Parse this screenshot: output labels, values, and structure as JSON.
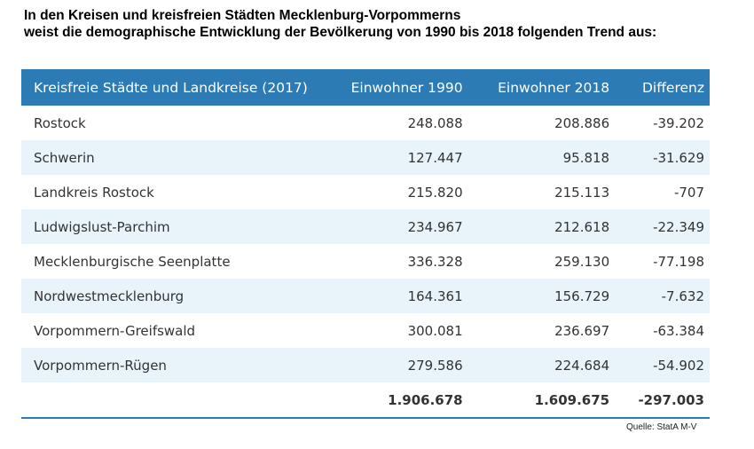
{
  "heading": {
    "line1": "In den Kreisen und kreisfreien Städten Mecklenburg-Vorpommerns",
    "line2": "weist die demographische Entwicklung der Bevölkerung von 1990 bis 2018 folgenden Trend aus:"
  },
  "table": {
    "columns": [
      "Kreisfreie Städte und Landkreise (2017)",
      "Einwohner 1990",
      "Einwohner 2018",
      "Differenz"
    ],
    "rows": [
      [
        "Rostock",
        "248.088",
        "208.886",
        "-39.202"
      ],
      [
        "Schwerin",
        "127.447",
        "95.818",
        "-31.629"
      ],
      [
        "Landkreis Rostock",
        "215.820",
        "215.113",
        "-707"
      ],
      [
        "Ludwigslust-Parchim",
        "234.967",
        "212.618",
        "-22.349"
      ],
      [
        "Mecklenburgische Seenplatte",
        "336.328",
        "259.130",
        "-77.198"
      ],
      [
        "Nordwestmecklenburg",
        "164.361",
        "156.729",
        "-7.632"
      ],
      [
        "Vorpommern-Greifswald",
        "300.081",
        "236.697",
        "-63.384"
      ],
      [
        "Vorpommern-Rügen",
        "279.586",
        "224.684",
        "-54.902"
      ]
    ],
    "total": [
      "",
      "1.906.678",
      "1.609.675",
      "-297.003"
    ]
  },
  "source": "Quelle: StatA M-V",
  "colors": {
    "header_bg": "#2c7bb5",
    "stripe_bg": "#e8f4fa",
    "header_text": "#ffffff"
  }
}
